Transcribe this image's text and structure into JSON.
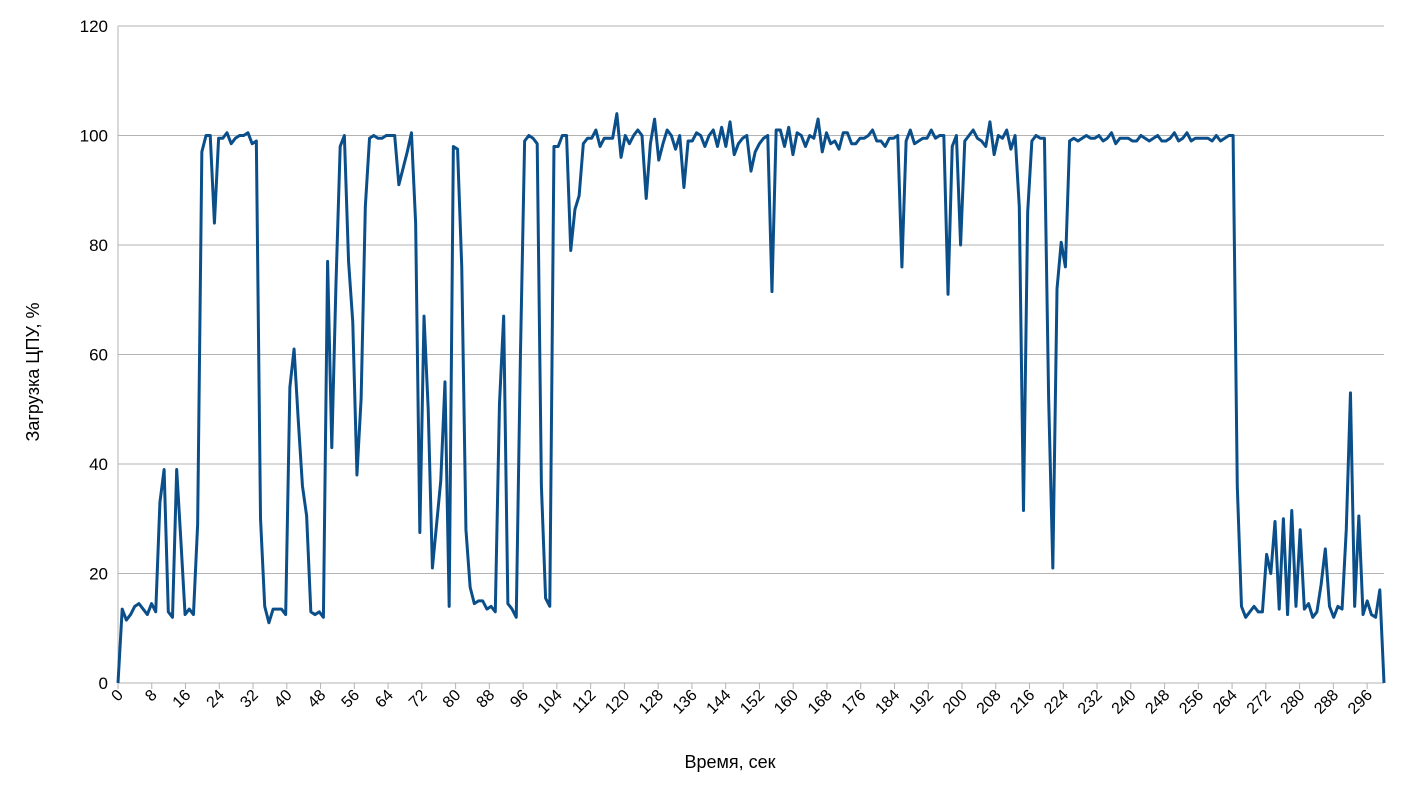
{
  "colors": {
    "line": "#0b4f8a",
    "grid": "#b3b3b3",
    "axis": "#b3b3b3"
  },
  "chart_data": {
    "type": "line",
    "xlabel": "Время, сек",
    "ylabel": "Загрузка ЦПУ, %",
    "xlim": [
      0,
      300
    ],
    "ylim": [
      0,
      120
    ],
    "y_ticks": [
      0,
      20,
      40,
      60,
      80,
      100,
      120
    ],
    "x_ticks": [
      0,
      8,
      16,
      24,
      32,
      40,
      48,
      56,
      64,
      72,
      80,
      88,
      96,
      104,
      112,
      120,
      128,
      136,
      144,
      152,
      160,
      168,
      176,
      184,
      192,
      200,
      208,
      216,
      224,
      232,
      240,
      248,
      256,
      264,
      272,
      280,
      288,
      296
    ],
    "grid": "horizontal",
    "legend": "none",
    "series": [
      {
        "values": [
          0,
          13.5,
          11.5,
          12.5,
          14,
          14.5,
          13.5,
          12.5,
          14.5,
          13,
          33,
          39,
          13,
          12,
          39,
          26,
          12.5,
          13.5,
          12.5,
          29,
          97,
          100,
          100,
          84,
          99.5,
          99.5,
          100.5,
          98.5,
          99.5,
          100,
          100,
          100.5,
          98.5,
          99,
          30,
          14,
          11,
          13.5,
          13.5,
          13.5,
          12.5,
          54,
          61,
          48,
          36,
          30.5,
          13,
          12.5,
          13,
          12,
          77,
          43,
          73,
          98,
          100,
          77,
          66,
          38,
          52,
          87,
          99.5,
          100,
          99.5,
          99.5,
          100,
          100,
          100,
          91,
          94,
          97,
          100.5,
          84,
          27.5,
          67,
          50,
          21,
          29,
          37,
          55,
          14,
          98,
          97.5,
          76,
          28,
          17.5,
          14.5,
          15,
          15,
          13.5,
          14,
          13,
          51,
          67,
          14.5,
          13.5,
          12,
          60,
          99,
          100,
          99.5,
          98.5,
          36,
          15.5,
          14,
          98,
          98,
          100,
          100,
          79,
          86.5,
          89,
          98.5,
          99.5,
          99.5,
          101,
          98,
          99.5,
          99.5,
          99.5,
          104,
          96,
          100,
          98.5,
          100,
          101,
          100,
          88.5,
          98.5,
          103,
          95.5,
          98.5,
          101,
          100,
          97.5,
          100,
          90.5,
          99,
          99,
          100.5,
          100,
          98,
          100,
          101,
          98,
          101.5,
          98,
          102.5,
          96.5,
          98.5,
          99.5,
          100,
          93.5,
          97,
          98.5,
          99.5,
          100,
          71.5,
          101,
          101,
          98,
          101.5,
          96.5,
          100.5,
          100,
          98,
          100,
          99.5,
          103,
          97,
          100.5,
          98.5,
          99,
          97.5,
          100.5,
          100.5,
          98.5,
          98.5,
          99.5,
          99.5,
          100,
          101,
          99,
          99,
          98,
          99.5,
          99.5,
          100,
          76,
          99,
          101,
          98.5,
          99,
          99.5,
          99.5,
          101,
          99.5,
          100,
          100,
          71,
          98,
          100,
          80,
          99,
          100,
          101,
          99.5,
          99,
          98,
          102.5,
          96.5,
          100,
          99.5,
          101,
          97.5,
          100,
          87,
          31.5,
          86,
          99,
          100,
          99.5,
          99.5,
          52,
          21,
          72,
          80.5,
          76,
          99,
          99.5,
          99,
          99.5,
          100,
          99.5,
          99.5,
          100,
          99,
          99.5,
          100.5,
          98.5,
          99.5,
          99.5,
          99.5,
          99,
          99,
          100,
          99.5,
          99,
          99.5,
          100,
          99,
          99,
          99.5,
          100.5,
          99,
          99.5,
          100.5,
          99,
          99.5,
          99.5,
          99.5,
          99.5,
          99,
          100,
          99,
          99.5,
          100,
          100,
          36,
          14,
          12,
          13,
          14,
          13,
          13,
          23.5,
          20,
          29.5,
          13.5,
          30,
          12.5,
          31.5,
          14,
          28,
          13.5,
          14.5,
          12,
          13,
          18,
          24.5,
          14,
          12,
          14,
          13.5,
          28,
          53,
          14,
          30.5,
          12.5,
          15,
          12.5,
          12,
          17,
          0
        ]
      }
    ]
  }
}
